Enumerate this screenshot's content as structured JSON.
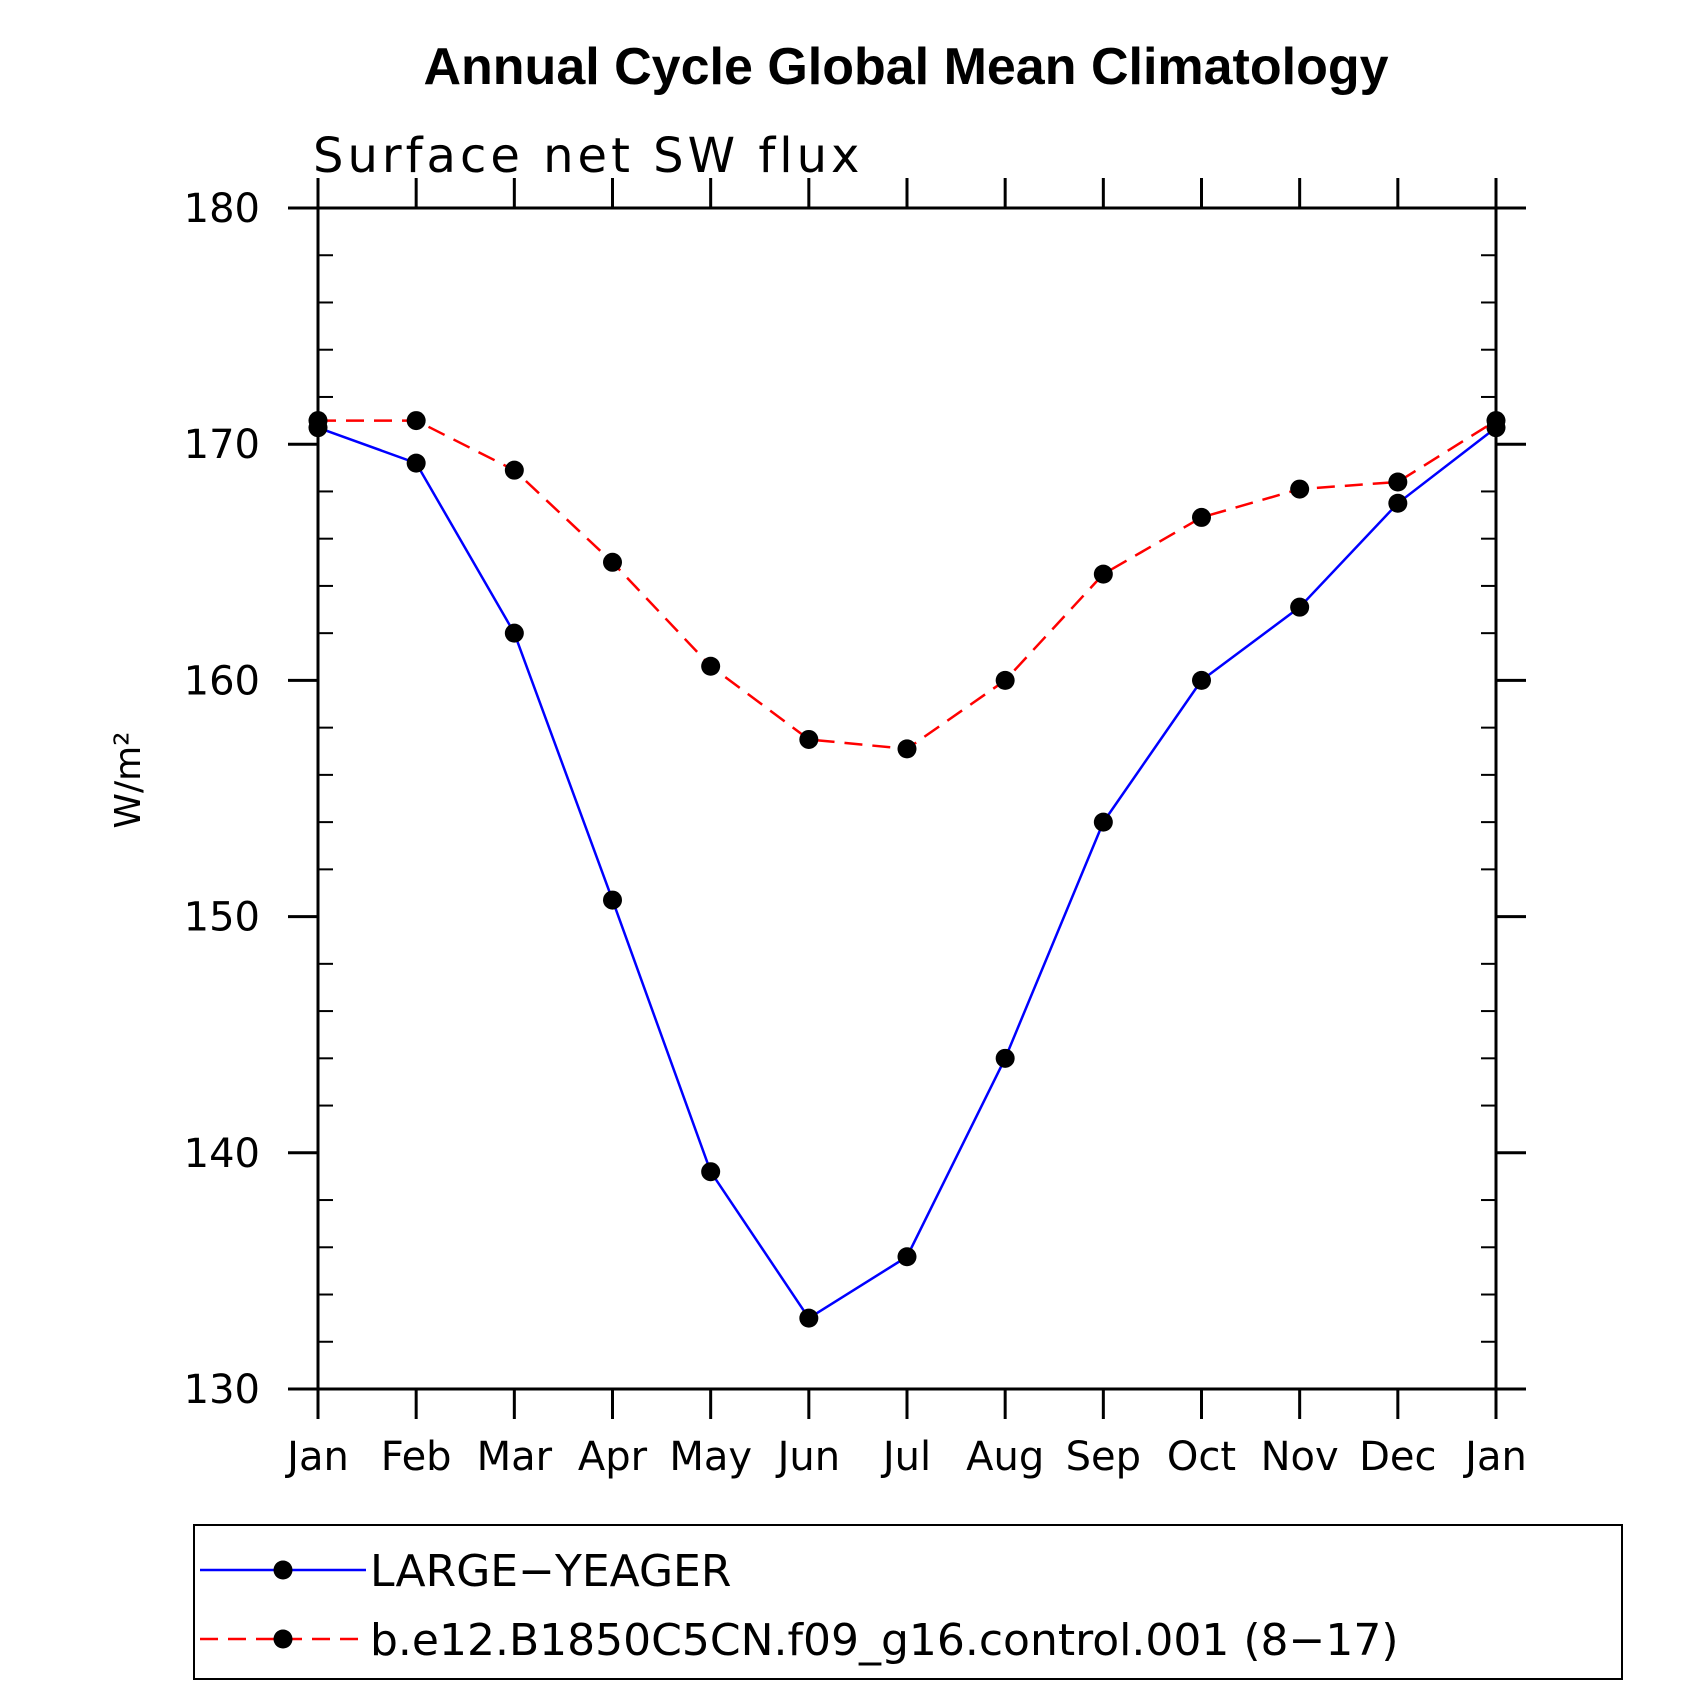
{
  "chart_data": {
    "type": "line",
    "title": "Annual Cycle Global Mean Climatology",
    "subtitle": "Surface net SW flux",
    "ylabel": "W/m²",
    "xlabel": "",
    "categories": [
      "Jan",
      "Feb",
      "Mar",
      "Apr",
      "May",
      "Jun",
      "Jul",
      "Aug",
      "Sep",
      "Oct",
      "Nov",
      "Dec",
      "Jan"
    ],
    "ylim": [
      130,
      180
    ],
    "yticks": [
      130,
      140,
      150,
      160,
      170,
      180
    ],
    "y_minor_step": 2,
    "grid": false,
    "legend_placement": "bottom",
    "series": [
      {
        "name": "LARGE−YEAGER",
        "color": "#0000ff",
        "line_style": "solid",
        "marker": "filled-circle",
        "values": [
          170.7,
          169.2,
          162.0,
          150.7,
          139.2,
          133.0,
          135.6,
          144.0,
          154.0,
          160.0,
          163.1,
          167.5,
          170.7
        ]
      },
      {
        "name": "b.e12.B1850C5CN.f09_g16.control.001 (8−17)",
        "color": "#ff0000",
        "line_style": "dashed",
        "marker": "filled-circle",
        "values": [
          171.0,
          171.0,
          168.9,
          165.0,
          160.6,
          157.5,
          157.1,
          160.0,
          164.5,
          166.9,
          168.1,
          168.4,
          171.0
        ]
      }
    ]
  }
}
